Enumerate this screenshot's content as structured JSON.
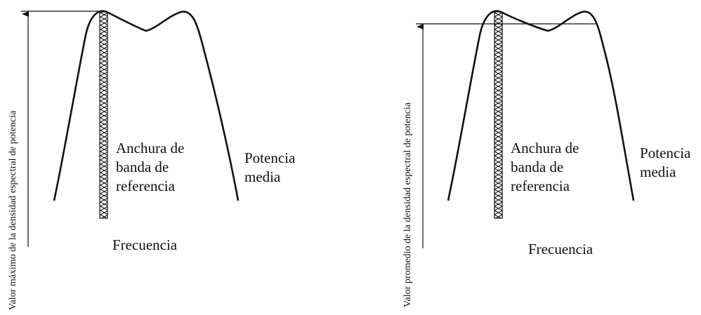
{
  "panels": [
    {
      "y_axis_label": "Valor máximo de la densidad espectral de potencia",
      "band_label": [
        "Anchura de",
        "banda de",
        "referencia"
      ],
      "power_label": [
        "Potencia",
        "media"
      ],
      "x_label": "Frecuencia"
    },
    {
      "y_axis_label": "Valor promedio de la densidad espectral de potencia",
      "band_label": [
        "Anchura de",
        "banda de",
        "referencia"
      ],
      "power_label": [
        "Potencia",
        "media"
      ],
      "x_label": "Frecuencia"
    }
  ],
  "colors": {
    "stroke": "#111111",
    "background": "#ffffff"
  }
}
